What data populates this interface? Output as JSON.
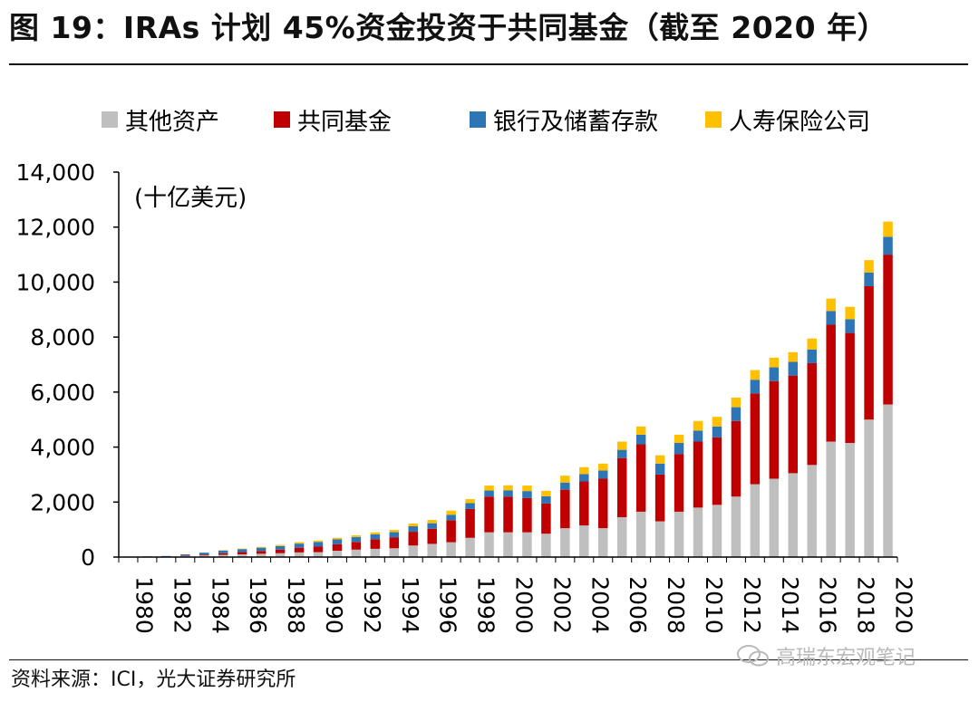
{
  "header": {
    "title": "图 19：IRAs 计划 45%资金投资于共同基金（截至 2020 年）"
  },
  "footer": {
    "source": "资料来源：ICI，光大证券研究所",
    "watermark": "高瑞东宏观笔记"
  },
  "colors": {
    "other": "#bfbfbf",
    "mutual_funds": "#c00000",
    "bank": "#2e75b6",
    "insurance": "#ffc000",
    "axis": "#000000"
  },
  "chart_data": {
    "type": "bar",
    "stacked": true,
    "unit_label": "(十亿美元)",
    "ylim": [
      0,
      14000
    ],
    "yticks": [
      0,
      2000,
      4000,
      6000,
      8000,
      10000,
      12000,
      14000
    ],
    "ytick_labels": [
      "0",
      "2,000",
      "4,000",
      "6,000",
      "8,000",
      "10,000",
      "12,000",
      "14,000"
    ],
    "categories": [
      "1980",
      "1981",
      "1982",
      "1983",
      "1984",
      "1985",
      "1986",
      "1987",
      "1988",
      "1989",
      "1990",
      "1991",
      "1992",
      "1993",
      "1994",
      "1995",
      "1996",
      "1997",
      "1998",
      "1999",
      "2000",
      "2001",
      "2002",
      "2003",
      "2004",
      "2005",
      "2006",
      "2007",
      "2008",
      "2009",
      "2010",
      "2011",
      "2012",
      "2013",
      "2014",
      "2015",
      "2016",
      "2017",
      "2018",
      "2019",
      "2020"
    ],
    "xtick_labels": [
      "1980",
      "1982",
      "1984",
      "1986",
      "1988",
      "1990",
      "1992",
      "1994",
      "1996",
      "1998",
      "2000",
      "2002",
      "2004",
      "2006",
      "2008",
      "2010",
      "2012",
      "2014",
      "2016",
      "2018",
      "2020"
    ],
    "series": [
      {
        "name": "其他资产",
        "color_key": "other",
        "values": [
          10,
          15,
          20,
          40,
          60,
          80,
          100,
          120,
          140,
          170,
          180,
          230,
          270,
          300,
          320,
          420,
          480,
          540,
          700,
          900,
          900,
          900,
          850,
          1050,
          1150,
          1050,
          1450,
          1650,
          1300,
          1650,
          1800,
          1900,
          2200,
          2650,
          2850,
          3050,
          3350,
          4200,
          4150,
          5000,
          5550
        ]
      },
      {
        "name": "共同基金",
        "color_key": "mutual_funds",
        "values": [
          0,
          0,
          0,
          20,
          30,
          60,
          80,
          100,
          130,
          170,
          200,
          240,
          280,
          350,
          400,
          500,
          550,
          800,
          1050,
          1300,
          1300,
          1250,
          1100,
          1400,
          1600,
          1800,
          2150,
          2450,
          1700,
          2100,
          2400,
          2450,
          2750,
          3300,
          3550,
          3550,
          3700,
          4250,
          4000,
          4850,
          5450
        ]
      },
      {
        "name": "银行及储蓄存款",
        "color_key": "bank",
        "values": [
          0,
          10,
          20,
          40,
          70,
          100,
          110,
          120,
          130,
          150,
          170,
          180,
          180,
          180,
          190,
          200,
          200,
          200,
          210,
          220,
          230,
          250,
          260,
          260,
          270,
          300,
          300,
          350,
          400,
          400,
          400,
          400,
          500,
          500,
          500,
          500,
          500,
          500,
          500,
          500,
          650
        ]
      },
      {
        "name": "人寿保险公司",
        "color_key": "insurance",
        "values": [
          0,
          0,
          0,
          0,
          0,
          10,
          20,
          30,
          40,
          50,
          50,
          50,
          60,
          70,
          80,
          100,
          120,
          150,
          150,
          180,
          180,
          200,
          200,
          250,
          250,
          250,
          300,
          300,
          300,
          300,
          350,
          350,
          350,
          350,
          350,
          350,
          400,
          450,
          450,
          450,
          550
        ]
      }
    ]
  }
}
